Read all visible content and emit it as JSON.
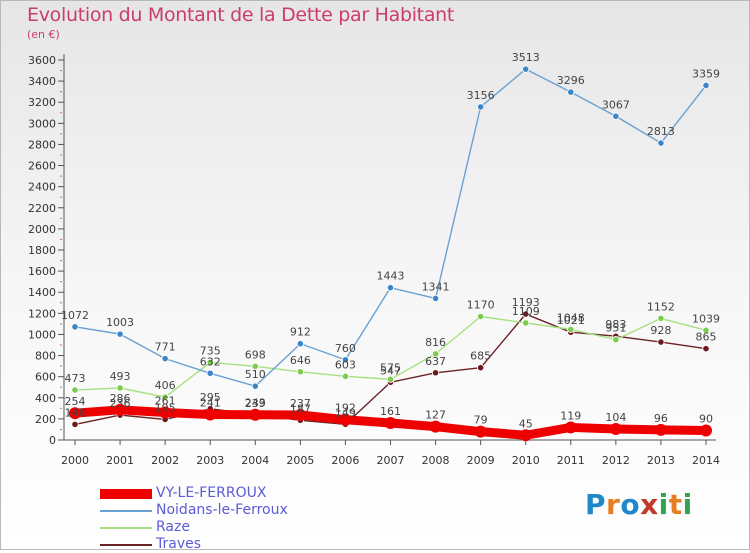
{
  "header": {
    "title": "Evolution du Montant de la Dette par Habitant",
    "unit": "(en €)"
  },
  "logo": {
    "text": "Proxiti",
    "letter_colors": [
      "#1e88c8",
      "#e67e22",
      "#1e88c8",
      "#c0392b",
      "#2ea44f",
      "#e67e22",
      "#2ea44f"
    ]
  },
  "chart_data": {
    "type": "line",
    "title": "Evolution du Montant de la Dette par Habitant",
    "subtitle": "(en €)",
    "x": [
      "2000",
      "2001",
      "2002",
      "2003",
      "2004",
      "2005",
      "2006",
      "2007",
      "2008",
      "2009",
      "2010",
      "2011",
      "2012",
      "2013",
      "2014"
    ],
    "y_ticks": [
      "0",
      "200",
      "400",
      "600",
      "800",
      "1000",
      "1200",
      "1400",
      "1600",
      "1800",
      "2000",
      "2200",
      "2400",
      "2600",
      "2800",
      "3000",
      "3200",
      "3400",
      "3600"
    ],
    "ylim": [
      0,
      3600
    ],
    "grid": false,
    "legend_position": "bottom-left",
    "series": [
      {
        "name": "VY-LE-FERROUX",
        "values": [
          254,
          286,
          261,
          241,
          239,
          237,
          192,
          161,
          127,
          79,
          45,
          119,
          104,
          96,
          90
        ],
        "labels": [
          "254",
          "286",
          "261",
          "241",
          "239",
          "237",
          "192",
          "161",
          "127",
          "79",
          "45",
          "119",
          "104",
          "96",
          "90"
        ],
        "color": "#ee0000",
        "marker_color": "#ee0000"
      },
      {
        "name": "Noidans-le-Ferroux",
        "values": [
          1072,
          1003,
          771,
          632,
          510,
          912,
          760,
          1443,
          1341,
          3156,
          3513,
          3296,
          3067,
          2813,
          3359
        ],
        "labels": [
          "1072",
          "1003",
          "771",
          "632",
          "510",
          "912",
          "760",
          "1443",
          "1341",
          "3156",
          "3513",
          "3296",
          "3067",
          "2813",
          "3359"
        ],
        "color": "#6aa1d4",
        "marker_color": "#3c86c8"
      },
      {
        "name": "Raze",
        "values": [
          473,
          493,
          406,
          735,
          698,
          646,
          603,
          575,
          816,
          1170,
          1109,
          1048,
          951,
          1152,
          1039
        ],
        "labels": [
          "473",
          "493",
          "406",
          "735",
          "698",
          "646",
          "603",
          "575",
          "816",
          "1170",
          "1109",
          "1048",
          "951",
          "1152",
          "1039"
        ],
        "color": "#a6e07e",
        "marker_color": "#7ccc50"
      },
      {
        "name": "Traves",
        "values": [
          148,
          236,
          195,
          295,
          243,
          187,
          149,
          547,
          637,
          685,
          1193,
          1021,
          983,
          928,
          865
        ],
        "labels": [
          "148",
          "236",
          "195",
          "295",
          "243",
          "187",
          "149",
          "547",
          "637",
          "685",
          "1193",
          "1021",
          "983",
          "928",
          "865"
        ],
        "color": "#6b2226",
        "marker_color": "#6b1a1e"
      }
    ]
  }
}
